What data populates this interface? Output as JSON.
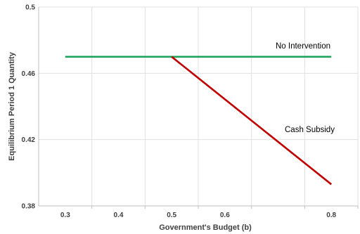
{
  "chart_data": {
    "type": "line",
    "title": "",
    "xlabel": "Government's Budget (b)",
    "ylabel": "Equilibrium Period 1 Quantity",
    "xlim": [
      0.25,
      0.85
    ],
    "ylim": [
      0.38,
      0.5
    ],
    "x_ticks": [
      "0.3",
      "0.4",
      "0.5",
      "0.6",
      "0.8"
    ],
    "x_tick_values": [
      0.3,
      0.4,
      0.5,
      0.6,
      0.8
    ],
    "y_ticks": [
      "0.38",
      "0.42",
      "0.46",
      "0.5"
    ],
    "y_tick_values": [
      0.38,
      0.42,
      0.46,
      0.5
    ],
    "x_axis_tick_marks": [
      0.35,
      0.45,
      0.55,
      0.65,
      0.75,
      0.85
    ],
    "grid": true,
    "series": [
      {
        "name": "No Intervention",
        "color": "#1fa35c",
        "x": [
          0.3,
          0.8
        ],
        "y": [
          0.47,
          0.47
        ]
      },
      {
        "name": "Cash Subsidy",
        "color": "#c00000",
        "x": [
          0.5,
          0.8
        ],
        "y": [
          0.47,
          0.393
        ]
      }
    ]
  }
}
